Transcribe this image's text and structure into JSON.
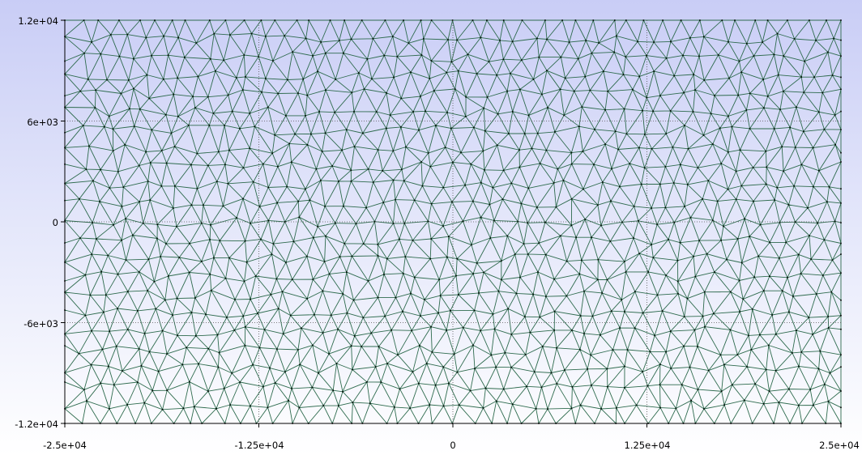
{
  "plot": {
    "type": "triangular-mesh",
    "x_axis": {
      "range": [
        -25000,
        25000
      ],
      "ticks": [
        -25000,
        -12500,
        0,
        12500,
        25000
      ],
      "tick_labels": [
        "-2.5e+04",
        "-1.25e+04",
        "0",
        "1.25e+04",
        "2.5e+04"
      ]
    },
    "y_axis": {
      "range": [
        -12000,
        12000
      ],
      "ticks": [
        12000,
        6000,
        0,
        -6000,
        -12000
      ],
      "tick_labels": [
        "1.2e+04",
        "6e+03",
        "0",
        "-6e+03",
        "-1.2e+04"
      ]
    },
    "grid": "dotted",
    "colors": {
      "mesh_edge": "#2e6b4e",
      "mesh_node": "#000000",
      "axis": "#000000",
      "grid": "#555555"
    }
  }
}
